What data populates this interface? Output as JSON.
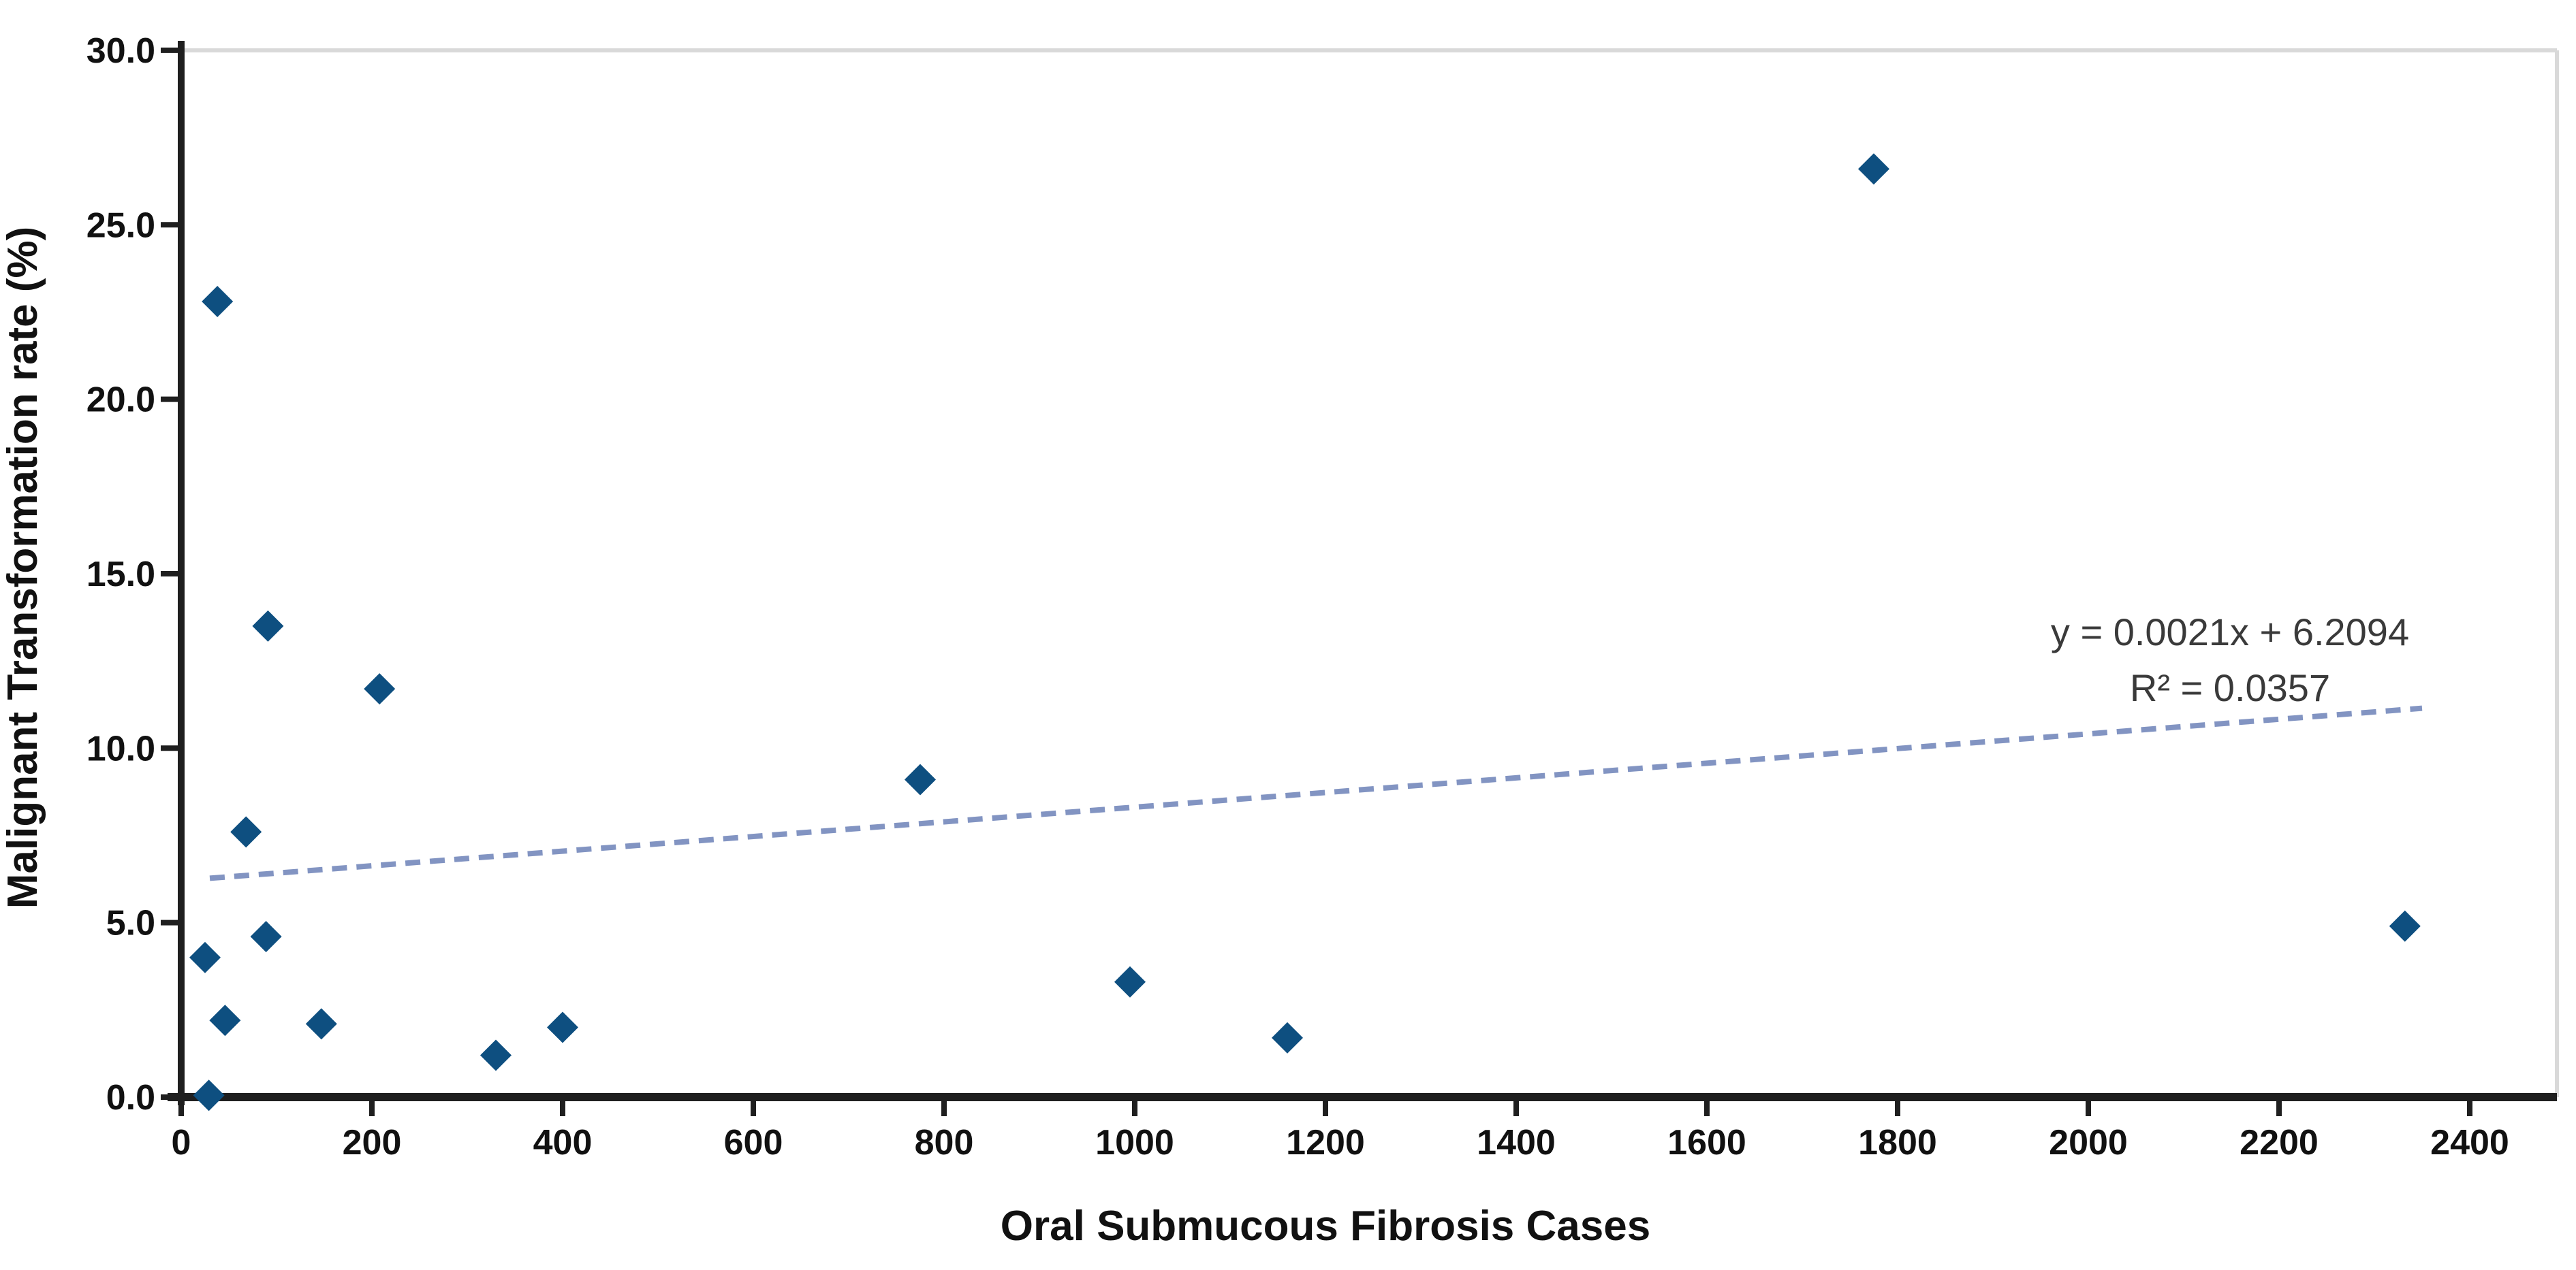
{
  "chart_data": {
    "type": "scatter",
    "title": "",
    "xlabel": "Oral Submucous Fibrosis Cases",
    "ylabel": "Malignant Transformation rate (%)",
    "xlim": [
      0,
      2490
    ],
    "ylim": [
      0,
      30
    ],
    "grid": false,
    "legend_position": "none",
    "marker": "diamond",
    "x_ticks": [
      {
        "value": 0,
        "label": "0"
      },
      {
        "value": 200,
        "label": "200"
      },
      {
        "value": 400,
        "label": "400"
      },
      {
        "value": 600,
        "label": "600"
      },
      {
        "value": 800,
        "label": "800"
      },
      {
        "value": 1000,
        "label": "1000"
      },
      {
        "value": 1200,
        "label": "1200"
      },
      {
        "value": 1400,
        "label": "1400"
      },
      {
        "value": 1600,
        "label": "1600"
      },
      {
        "value": 1800,
        "label": "1800"
      },
      {
        "value": 2000,
        "label": "2000"
      },
      {
        "value": 2200,
        "label": "2200"
      },
      {
        "value": 2400,
        "label": "2400"
      }
    ],
    "y_ticks": [
      {
        "value": 0,
        "label": "0.0"
      },
      {
        "value": 5,
        "label": "5.0"
      },
      {
        "value": 10,
        "label": "10.0"
      },
      {
        "value": 15,
        "label": "15.0"
      },
      {
        "value": 20,
        "label": "20.0"
      },
      {
        "value": 25,
        "label": "25.0"
      },
      {
        "value": 30,
        "label": "30.0"
      }
    ],
    "points": [
      {
        "x": 25,
        "y": 4.0
      },
      {
        "x": 29,
        "y": 0.05
      },
      {
        "x": 38,
        "y": 22.8
      },
      {
        "x": 46,
        "y": 2.2
      },
      {
        "x": 68,
        "y": 7.6
      },
      {
        "x": 89,
        "y": 4.6
      },
      {
        "x": 91,
        "y": 13.5
      },
      {
        "x": 147,
        "y": 2.1
      },
      {
        "x": 208,
        "y": 11.7
      },
      {
        "x": 330,
        "y": 1.2
      },
      {
        "x": 400,
        "y": 2.0
      },
      {
        "x": 775,
        "y": 9.1
      },
      {
        "x": 995,
        "y": 3.3
      },
      {
        "x": 1160,
        "y": 1.7
      },
      {
        "x": 1775,
        "y": 26.6
      },
      {
        "x": 2332,
        "y": 4.9
      }
    ],
    "trendline": {
      "slope": 0.0021,
      "intercept": 6.2094,
      "x_start": 30,
      "x_end": 2350,
      "style": "dashed",
      "equation": "y = 0.0021x + 6.2094",
      "r_squared": "R² = 0.0357"
    },
    "colors": {
      "marker": "#0e4f80",
      "trendline": "#8294c2",
      "axis": "#1f1f1f",
      "tick_text": "#111111",
      "equation_text": "#3a3a3a",
      "plot_border": "#d9d9d9",
      "background": "#ffffff"
    }
  }
}
